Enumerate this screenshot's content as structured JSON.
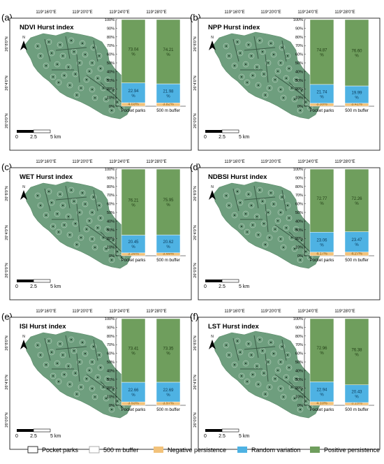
{
  "figure": {
    "coords": {
      "lon_top": [
        "119°16'0\"E",
        "119°20'0\"E",
        "119°24'0\"E",
        "119°28'0\"E"
      ],
      "lat_left": [
        "26°8'0\"N",
        "26°4'0\"N",
        "26°0'0\"N"
      ]
    },
    "scale": {
      "ticks": [
        "0",
        "2.5",
        "5 km"
      ]
    },
    "north": "N",
    "colors": {
      "map": "#6e9e7e",
      "positive": "#6f9e5d",
      "random": "#4eb2e3",
      "negative": "#f2c27a",
      "frame": "#000000"
    },
    "legend": {
      "items": [
        {
          "label": "Pocket parks",
          "swatch": "outline"
        },
        {
          "label": "500 m buffer",
          "swatch": "outline-light"
        },
        {
          "label": "Negative persistence",
          "swatch": "negative"
        },
        {
          "label": "Random variation",
          "swatch": "random"
        },
        {
          "label": "Positive persistence",
          "swatch": "positive"
        }
      ]
    }
  },
  "chart_data": [
    {
      "panel": "(a)",
      "title": "NDVI Hurst index",
      "type": "bar",
      "stacked": true,
      "categories": [
        "Pocket parks",
        "500 m buffer"
      ],
      "ylim": [
        0,
        100
      ],
      "yticks": [
        "0%",
        "10%",
        "20%",
        "30%",
        "40%",
        "50%",
        "60%",
        "70%",
        "80%",
        "90%",
        "100%"
      ],
      "series": [
        {
          "name": "Negative persistence",
          "values": [
            4.03,
            3.82
          ],
          "labels": [
            "4.03%",
            "3.82%"
          ]
        },
        {
          "name": "Random variation",
          "values": [
            22.94,
            21.98
          ],
          "labels": [
            "22.94 %",
            "21.98 %"
          ]
        },
        {
          "name": "Positive persistence",
          "values": [
            73.04,
            74.21
          ],
          "labels": [
            "73.04 %",
            "74.21 %"
          ]
        }
      ]
    },
    {
      "panel": "(b)",
      "title": "NPP Hurst index",
      "type": "bar",
      "stacked": true,
      "categories": [
        "Pocket parks",
        "500 m buffer"
      ],
      "ylim": [
        0,
        100
      ],
      "yticks": [
        "0%",
        "10%",
        "20%",
        "30%",
        "40%",
        "50%",
        "60%",
        "70%",
        "80%",
        "90%",
        "100%"
      ],
      "series": [
        {
          "name": "Negative persistence",
          "values": [
            3.39,
            3.41
          ],
          "labels": [
            "3.39%",
            "3.41%"
          ]
        },
        {
          "name": "Random variation",
          "values": [
            21.74,
            19.99
          ],
          "labels": [
            "21.74 %",
            "19.99 %"
          ]
        },
        {
          "name": "Positive persistence",
          "values": [
            74.87,
            76.6
          ],
          "labels": [
            "74.87 %",
            "76.60 %"
          ]
        }
      ]
    },
    {
      "panel": "(c)",
      "title": "WET Hurst index",
      "type": "bar",
      "stacked": true,
      "categories": [
        "Pocket parks",
        "500 m buffer"
      ],
      "ylim": [
        0,
        100
      ],
      "yticks": [
        "0%",
        "10%",
        "20%",
        "30%",
        "40%",
        "50%",
        "60%",
        "70%",
        "80%",
        "90%",
        "100%"
      ],
      "series": [
        {
          "name": "Negative persistence",
          "values": [
            3.34,
            3.44
          ],
          "labels": [
            "3.34%",
            "3.44%"
          ]
        },
        {
          "name": "Random variation",
          "values": [
            20.45,
            20.62
          ],
          "labels": [
            "20.45 %",
            "20.62 %"
          ]
        },
        {
          "name": "Positive persistence",
          "values": [
            76.21,
            75.95
          ],
          "labels": [
            "76.21 %",
            "75.95 %"
          ]
        }
      ]
    },
    {
      "panel": "(d)",
      "title": "NDBSI Hurst index",
      "type": "bar",
      "stacked": true,
      "categories": [
        "Pocket parks",
        "500 m buffer"
      ],
      "ylim": [
        0,
        100
      ],
      "yticks": [
        "0%",
        "10%",
        "20%",
        "30%",
        "40%",
        "50%",
        "60%",
        "70%",
        "80%",
        "90%",
        "100%"
      ],
      "series": [
        {
          "name": "Negative persistence",
          "values": [
            4.17,
            4.27
          ],
          "labels": [
            "4.17%",
            "4.27%"
          ]
        },
        {
          "name": "Random variation",
          "values": [
            23.06,
            23.47
          ],
          "labels": [
            "23.06 %",
            "23.47 %"
          ]
        },
        {
          "name": "Positive persistence",
          "values": [
            72.77,
            72.26
          ],
          "labels": [
            "72.77 %",
            "72.26 %"
          ]
        }
      ]
    },
    {
      "panel": "(e)",
      "title": "ISI Hurst index",
      "type": "bar",
      "stacked": true,
      "categories": [
        "Pocket parks",
        "500 m buffer"
      ],
      "ylim": [
        0,
        100
      ],
      "yticks": [
        "0%",
        "10%",
        "20%",
        "30%",
        "40%",
        "50%",
        "60%",
        "70%",
        "80%",
        "90%",
        "100%"
      ],
      "series": [
        {
          "name": "Negative persistence",
          "values": [
            3.93,
            3.97
          ],
          "labels": [
            "3.93%",
            "3.97%"
          ]
        },
        {
          "name": "Random variation",
          "values": [
            22.66,
            22.69
          ],
          "labels": [
            "22.66 %",
            "22.69 %"
          ]
        },
        {
          "name": "Positive persistence",
          "values": [
            73.41,
            73.35
          ],
          "labels": [
            "73.41 %",
            "73.35 %"
          ]
        }
      ]
    },
    {
      "panel": "(f)",
      "title": "LST Hurst index",
      "type": "bar",
      "stacked": true,
      "categories": [
        "Pocket parks",
        "500 m buffer"
      ],
      "ylim": [
        0,
        100
      ],
      "yticks": [
        "0%",
        "10%",
        "20%",
        "30%",
        "40%",
        "50%",
        "60%",
        "70%",
        "80%",
        "90%",
        "100%"
      ],
      "series": [
        {
          "name": "Negative persistence",
          "values": [
            4.1,
            3.19
          ],
          "labels": [
            "4.10%",
            "3.19%"
          ]
        },
        {
          "name": "Random variation",
          "values": [
            22.94,
            20.43
          ],
          "labels": [
            "22.94 %",
            "20.43 %"
          ]
        },
        {
          "name": "Positive persistence",
          "values": [
            72.96,
            76.38
          ],
          "labels": [
            "72.96 %",
            "76.38 %"
          ]
        }
      ]
    }
  ]
}
